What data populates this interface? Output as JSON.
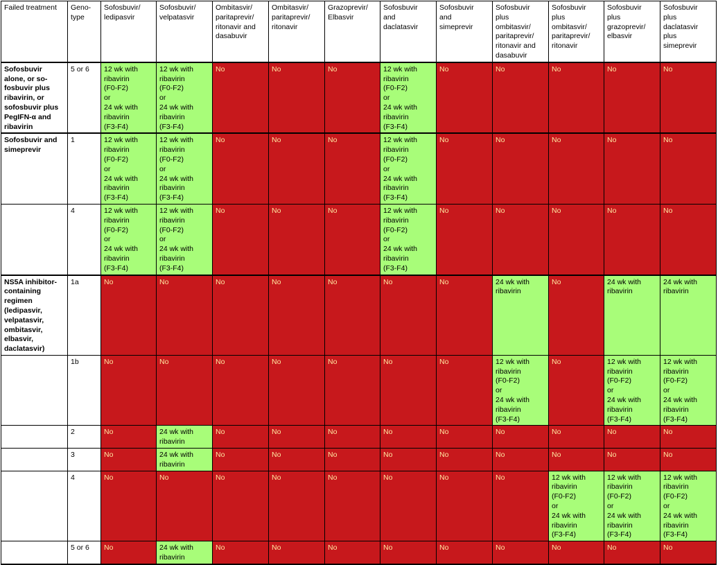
{
  "headers": [
    "Failed treatment",
    "Geno-\ntype",
    "Sofosbuvir/\nledipasvir",
    "Sofosbuvir/\nvelpatasvir",
    "Ombitasvir/\nparitaprevir/\nritonavir and\ndasabuvir",
    "Ombitasvir/\nparitaprevir/\nritonavir",
    "Grazoprevir/\nElbasvir",
    "Sofosbuvir\nand\ndaclatasvir",
    "Sofosbuvir\nand\nsimeprevir",
    "Sofosbuvir\nplus\nombitasvir/\nparitaprevir/\nritonavir and\ndasabuvir",
    "Sofosbuvir\nplus\nombitasvir/\nparitaprevir/\nritonavir",
    "Sofosbuvir\nplus\ngrazoprevir/\nelbasvir",
    "Sofosbuvir\nplus\ndaclatasvir\nplus\nsimeprevir"
  ],
  "groups": [
    {
      "treatment": "Sofosbuvir\nalone, or so-\nfosbuvir plus\nribavirin, or\nsofosbuvir plus\nPegIFN-α and\nribavirin",
      "rows": [
        {
          "genotype": "5 or 6",
          "cells": [
            {
              "yes": true,
              "text": "12 wk with\nribavirin\n(F0-F2)\nor\n24 wk with\nribavirin\n(F3-F4)"
            },
            {
              "yes": true,
              "text": "12 wk with\nribavirin\n(F0-F2)\nor\n24 wk with\nribavirin\n(F3-F4)"
            },
            {
              "yes": false,
              "text": "No"
            },
            {
              "yes": false,
              "text": "No"
            },
            {
              "yes": false,
              "text": "No"
            },
            {
              "yes": true,
              "text": "12 wk with\nribavirin\n(F0-F2)\nor\n24 wk with\nribavirin\n(F3-F4)"
            },
            {
              "yes": false,
              "text": "No"
            },
            {
              "yes": false,
              "text": "No"
            },
            {
              "yes": false,
              "text": "No"
            },
            {
              "yes": false,
              "text": "No"
            },
            {
              "yes": false,
              "text": "No"
            }
          ]
        }
      ]
    },
    {
      "treatment": "Sofosbuvir and\nsimeprevir",
      "rows": [
        {
          "genotype": "1",
          "cells": [
            {
              "yes": true,
              "text": "12 wk with\nribavirin\n(F0-F2)\nor\n24 wk with\nribavirin\n(F3-F4)"
            },
            {
              "yes": true,
              "text": "12 wk with\nribavirin\n(F0-F2)\nor\n24 wk with\nribavirin\n(F3-F4)"
            },
            {
              "yes": false,
              "text": "No"
            },
            {
              "yes": false,
              "text": "No"
            },
            {
              "yes": false,
              "text": "No"
            },
            {
              "yes": true,
              "text": "12 wk with\nribavirin\n(F0-F2)\nor\n24 wk with\nribavirin\n(F3-F4)"
            },
            {
              "yes": false,
              "text": "No"
            },
            {
              "yes": false,
              "text": "No"
            },
            {
              "yes": false,
              "text": "No"
            },
            {
              "yes": false,
              "text": "No"
            },
            {
              "yes": false,
              "text": "No"
            }
          ]
        },
        {
          "genotype": "4",
          "cells": [
            {
              "yes": true,
              "text": "12 wk with\nribavirin\n(F0-F2)\nor\n24 wk with\nribavirin\n(F3-F4)"
            },
            {
              "yes": true,
              "text": "12 wk with\nribavirin\n(F0-F2)\nor\n24 wk with\nribavirin\n(F3-F4)"
            },
            {
              "yes": false,
              "text": "No"
            },
            {
              "yes": false,
              "text": "No"
            },
            {
              "yes": false,
              "text": "No"
            },
            {
              "yes": true,
              "text": "12 wk with\nribavirin\n(F0-F2)\nor\n24 wk with\nribavirin\n(F3-F4)"
            },
            {
              "yes": false,
              "text": "No"
            },
            {
              "yes": false,
              "text": "No"
            },
            {
              "yes": false,
              "text": "No"
            },
            {
              "yes": false,
              "text": "No"
            },
            {
              "yes": false,
              "text": "No"
            }
          ]
        }
      ]
    },
    {
      "treatment": "NS5A inhibitor-\ncontaining\nregimen\n(ledipasvir,\nvelpatasvir,\nombitasvir,\nelbasvir,\ndaclatasvir)",
      "rows": [
        {
          "genotype": "1a",
          "cells": [
            {
              "yes": false,
              "text": "No"
            },
            {
              "yes": false,
              "text": "No"
            },
            {
              "yes": false,
              "text": "No"
            },
            {
              "yes": false,
              "text": "No"
            },
            {
              "yes": false,
              "text": "No"
            },
            {
              "yes": false,
              "text": "No"
            },
            {
              "yes": false,
              "text": "No"
            },
            {
              "yes": true,
              "text": "24 wk with\nribavirin"
            },
            {
              "yes": false,
              "text": "No"
            },
            {
              "yes": true,
              "text": "24 wk with\nribavirin"
            },
            {
              "yes": true,
              "text": " 24 wk with\nribavirin"
            }
          ]
        },
        {
          "genotype": "1b",
          "cells": [
            {
              "yes": false,
              "text": "No"
            },
            {
              "yes": false,
              "text": "No"
            },
            {
              "yes": false,
              "text": "No"
            },
            {
              "yes": false,
              "text": "No"
            },
            {
              "yes": false,
              "text": "No"
            },
            {
              "yes": false,
              "text": "No"
            },
            {
              "yes": false,
              "text": "No"
            },
            {
              "yes": true,
              "text": "12 wk with\nribavirin\n(F0-F2)\nor\n24 wk with\nribavirin\n(F3-F4)"
            },
            {
              "yes": false,
              "text": "No"
            },
            {
              "yes": true,
              "text": "12 wk with\nribavirin\n(F0-F2)\nor\n24 wk with\nribavirin\n(F3-F4)"
            },
            {
              "yes": true,
              "text": "12 wk with\nribavirin\n(F0-F2)\nor\n24 wk with\nribavirin\n(F3-F4)"
            }
          ]
        },
        {
          "genotype": "2",
          "cells": [
            {
              "yes": false,
              "text": "No"
            },
            {
              "yes": true,
              "text": "24 wk with\nribavirin"
            },
            {
              "yes": false,
              "text": "No"
            },
            {
              "yes": false,
              "text": "No"
            },
            {
              "yes": false,
              "text": "No"
            },
            {
              "yes": false,
              "text": "No"
            },
            {
              "yes": false,
              "text": "No"
            },
            {
              "yes": false,
              "text": "No"
            },
            {
              "yes": false,
              "text": "No"
            },
            {
              "yes": false,
              "text": "No"
            },
            {
              "yes": false,
              "text": "No"
            }
          ]
        },
        {
          "genotype": "3",
          "cells": [
            {
              "yes": false,
              "text": "No"
            },
            {
              "yes": true,
              "text": "24 wk with\nribavirin"
            },
            {
              "yes": false,
              "text": "No"
            },
            {
              "yes": false,
              "text": "No"
            },
            {
              "yes": false,
              "text": "No"
            },
            {
              "yes": false,
              "text": "No"
            },
            {
              "yes": false,
              "text": "No"
            },
            {
              "yes": false,
              "text": "No"
            },
            {
              "yes": false,
              "text": "No"
            },
            {
              "yes": false,
              "text": "No"
            },
            {
              "yes": false,
              "text": "No"
            }
          ]
        },
        {
          "genotype": "4",
          "cells": [
            {
              "yes": false,
              "text": "No"
            },
            {
              "yes": false,
              "text": "No"
            },
            {
              "yes": false,
              "text": "No"
            },
            {
              "yes": false,
              "text": "No"
            },
            {
              "yes": false,
              "text": "No"
            },
            {
              "yes": false,
              "text": "No"
            },
            {
              "yes": false,
              "text": "No"
            },
            {
              "yes": false,
              "text": "No"
            },
            {
              "yes": true,
              "text": "12 wk with\nribavirin\n(F0-F2)\nor\n24 wk with\nribavirin\n(F3-F4)"
            },
            {
              "yes": true,
              "text": "12 wk with\nribavirin\n(F0-F2)\nor\n24 wk with\nribavirin\n(F3-F4)"
            },
            {
              "yes": true,
              "text": "12 wk with\nribavirin\n(F0-F2)\nor\n24 wk with\nribavirin\n(F3-F4)"
            }
          ]
        },
        {
          "genotype": "5 or 6",
          "cells": [
            {
              "yes": false,
              "text": "No"
            },
            {
              "yes": true,
              "text": "24 wk with\nribavirin"
            },
            {
              "yes": false,
              "text": "No"
            },
            {
              "yes": false,
              "text": "No"
            },
            {
              "yes": false,
              "text": "No"
            },
            {
              "yes": false,
              "text": "No"
            },
            {
              "yes": false,
              "text": "No"
            },
            {
              "yes": false,
              "text": "No"
            },
            {
              "yes": false,
              "text": "No"
            },
            {
              "yes": false,
              "text": "No"
            },
            {
              "yes": false,
              "text": "No"
            }
          ]
        }
      ]
    }
  ]
}
